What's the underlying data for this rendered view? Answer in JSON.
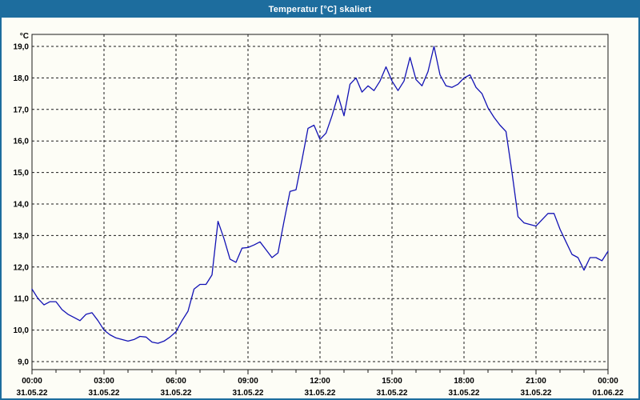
{
  "window": {
    "title": "Temperatur [°C] skaliert"
  },
  "colors": {
    "titlebar": "#1d6d9e",
    "titlebar_text": "#ffffff",
    "window_border": "#1d6d9e",
    "content_background": "#fdfdf6",
    "grid": "#1a1a1a",
    "axis_text": "#000000",
    "line": "#1212b4"
  },
  "chart_data": {
    "type": "line",
    "title": "Temperatur [°C] skaliert",
    "unit": "°C",
    "ylabel": "°C",
    "ylim": [
      9,
      19
    ],
    "y_tick_step": 1,
    "y_tick_labels": [
      "19,0",
      "18,0",
      "17,0",
      "16,0",
      "15,0",
      "14,0",
      "13,0",
      "12,0",
      "11,0",
      "10,0",
      "9,0"
    ],
    "x_start_hour": 0,
    "x_span_hours": 24,
    "x_major_tick_hours": 3,
    "x_minor_tick_hours": 1,
    "grid": "dashed",
    "legend": "none",
    "x_ticks": [
      {
        "time": "00:00",
        "date": "31.05.22"
      },
      {
        "time": "03:00",
        "date": "31.05.22"
      },
      {
        "time": "06:00",
        "date": "31.05.22"
      },
      {
        "time": "09:00",
        "date": "31.05.22"
      },
      {
        "time": "12:00",
        "date": "31.05.22"
      },
      {
        "time": "15:00",
        "date": "31.05.22"
      },
      {
        "time": "18:00",
        "date": "31.05.22"
      },
      {
        "time": "21:00",
        "date": "31.05.22"
      },
      {
        "time": "00:00",
        "date": "01.06.22"
      }
    ],
    "series": [
      {
        "name": "Temperatur",
        "color": "#1212b4",
        "start_hour": 0,
        "step_hours": 0.25,
        "values": [
          11.3,
          11.0,
          10.8,
          10.9,
          10.9,
          10.65,
          10.5,
          10.4,
          10.3,
          10.5,
          10.55,
          10.3,
          10.0,
          9.85,
          9.75,
          9.7,
          9.65,
          9.7,
          9.8,
          9.78,
          9.62,
          9.58,
          9.65,
          9.78,
          9.95,
          10.3,
          10.6,
          11.3,
          11.45,
          11.45,
          11.75,
          13.45,
          12.9,
          12.25,
          12.15,
          12.6,
          12.62,
          12.7,
          12.8,
          12.55,
          12.3,
          12.45,
          13.45,
          14.4,
          14.45,
          15.4,
          16.4,
          16.5,
          16.05,
          16.25,
          16.8,
          17.45,
          16.8,
          17.8,
          18.0,
          17.55,
          17.75,
          17.6,
          17.9,
          18.35,
          17.9,
          17.6,
          17.9,
          18.65,
          17.95,
          17.75,
          18.2,
          19.0,
          18.1,
          17.75,
          17.7,
          17.8,
          18.0,
          18.1,
          17.7,
          17.5,
          17.05,
          16.75,
          16.5,
          16.3,
          15.0,
          13.6,
          13.4,
          13.35,
          13.3,
          13.5,
          13.7,
          13.7,
          13.2,
          12.8,
          12.4,
          12.3,
          11.9,
          12.3,
          12.3,
          12.2,
          12.5
        ]
      }
    ]
  }
}
